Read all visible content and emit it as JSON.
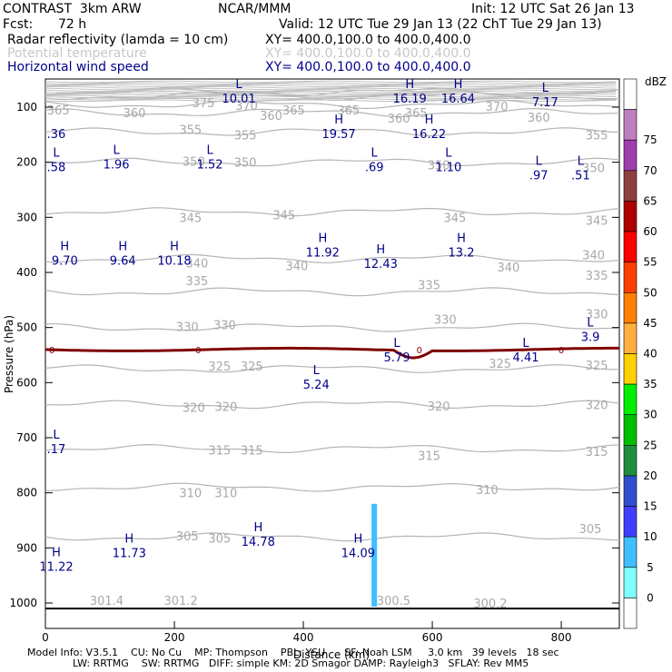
{
  "header": {
    "model": "CONTRAST  3km ARW",
    "center": "NCAR/MMM",
    "init": "Init: 12 UTC Sat 26 Jan 13",
    "fcst_label": "Fcst:",
    "fcst_value": "72 h",
    "valid": "Valid: 12 UTC Tue 29 Jan 13 (22 ChT Tue 29 Jan 13)",
    "fields": [
      {
        "name": "Radar reflectivity (lamda = 10 cm)",
        "xy": "XY= 400.0,100.0 to 400.0,400.0",
        "color": "#000000"
      },
      {
        "name": "Potential temperature",
        "xy": "XY= 400.0,100.0 to 400.0,400.0",
        "color": "#c8c8c8"
      },
      {
        "name": "Horizontal wind speed",
        "xy": "XY= 400.0,100.0 to 400.0,400.0",
        "color": "#00008b"
      }
    ]
  },
  "footer": {
    "line1": "Model Info: V3.5.1    CU: No Cu    MP: Thompson    PBL: YSU      SF: Noah LSM     3.0 km   39 levels   18 sec",
    "line2": "LW: RRTMG    SW: RRTMG   DIFF: simple KM: 2D Smagor DAMP: Rayleigh3   SFLAY: Rev MM5"
  },
  "chart_data": {
    "type": "cross-section",
    "xlabel": "Distance (km)",
    "ylabel": "Pressure (hPa)",
    "xlim": [
      0,
      890
    ],
    "ylim": [
      1000,
      50
    ],
    "x_ticks": [
      0,
      200,
      400,
      600,
      800
    ],
    "y_ticks": [
      100,
      200,
      300,
      400,
      500,
      600,
      700,
      800,
      900,
      1000
    ],
    "theta_contours": [
      {
        "value": 305,
        "p": 880
      },
      {
        "value": 310,
        "p": 790
      },
      {
        "value": 315,
        "p": 720
      },
      {
        "value": 320,
        "p": 640
      },
      {
        "value": 325,
        "p": 575
      },
      {
        "value": 330,
        "p": 500
      },
      {
        "value": 335,
        "p": 435
      },
      {
        "value": 340,
        "p": 375
      },
      {
        "value": 345,
        "p": 290
      },
      {
        "value": 350,
        "p": 200
      },
      {
        "value": 355,
        "p": 145
      },
      {
        "value": 360,
        "p": 110
      },
      {
        "value": 365,
        "p": 95
      },
      {
        "value": 370,
        "p": 80
      },
      {
        "value": 375,
        "p": 72
      }
    ],
    "theta_labels": [
      {
        "x": 138,
        "p": 110,
        "text": "360"
      },
      {
        "x": 245,
        "p": 92,
        "text": "375"
      },
      {
        "x": 312,
        "p": 97,
        "text": "370"
      },
      {
        "x": 385,
        "p": 105,
        "text": "365"
      },
      {
        "x": 470,
        "p": 105,
        "text": "365"
      },
      {
        "x": 575,
        "p": 110,
        "text": "365"
      },
      {
        "x": 700,
        "p": 98,
        "text": "370"
      },
      {
        "x": 20,
        "p": 105,
        "text": "365"
      },
      {
        "x": 350,
        "p": 115,
        "text": "360"
      },
      {
        "x": 548,
        "p": 120,
        "text": "360"
      },
      {
        "x": 765,
        "p": 118,
        "text": "360"
      },
      {
        "x": 225,
        "p": 140,
        "text": "355"
      },
      {
        "x": 310,
        "p": 150,
        "text": "355"
      },
      {
        "x": 855,
        "p": 150,
        "text": "355"
      },
      {
        "x": 230,
        "p": 198,
        "text": "350"
      },
      {
        "x": 310,
        "p": 200,
        "text": "350"
      },
      {
        "x": 610,
        "p": 205,
        "text": "350"
      },
      {
        "x": 850,
        "p": 210,
        "text": "350"
      },
      {
        "x": 225,
        "p": 300,
        "text": "345"
      },
      {
        "x": 370,
        "p": 295,
        "text": "345"
      },
      {
        "x": 635,
        "p": 300,
        "text": "345"
      },
      {
        "x": 855,
        "p": 305,
        "text": "345"
      },
      {
        "x": 235,
        "p": 383,
        "text": "340"
      },
      {
        "x": 390,
        "p": 388,
        "text": "340"
      },
      {
        "x": 718,
        "p": 390,
        "text": "340"
      },
      {
        "x": 850,
        "p": 368,
        "text": "340"
      },
      {
        "x": 235,
        "p": 415,
        "text": "335"
      },
      {
        "x": 595,
        "p": 422,
        "text": "335"
      },
      {
        "x": 855,
        "p": 405,
        "text": "335"
      },
      {
        "x": 220,
        "p": 498,
        "text": "330"
      },
      {
        "x": 278,
        "p": 495,
        "text": "330"
      },
      {
        "x": 620,
        "p": 485,
        "text": "330"
      },
      {
        "x": 855,
        "p": 475,
        "text": "330"
      },
      {
        "x": 270,
        "p": 570,
        "text": "325"
      },
      {
        "x": 320,
        "p": 570,
        "text": "325"
      },
      {
        "x": 705,
        "p": 565,
        "text": "325"
      },
      {
        "x": 855,
        "p": 568,
        "text": "325"
      },
      {
        "x": 230,
        "p": 645,
        "text": "320"
      },
      {
        "x": 280,
        "p": 643,
        "text": "320"
      },
      {
        "x": 610,
        "p": 642,
        "text": "320"
      },
      {
        "x": 855,
        "p": 640,
        "text": "320"
      },
      {
        "x": 270,
        "p": 722,
        "text": "315"
      },
      {
        "x": 320,
        "p": 722,
        "text": "315"
      },
      {
        "x": 595,
        "p": 732,
        "text": "315"
      },
      {
        "x": 855,
        "p": 725,
        "text": "315"
      },
      {
        "x": 225,
        "p": 800,
        "text": "310"
      },
      {
        "x": 280,
        "p": 800,
        "text": "310"
      },
      {
        "x": 685,
        "p": 794,
        "text": "310"
      },
      {
        "x": 220,
        "p": 878,
        "text": "305"
      },
      {
        "x": 270,
        "p": 882,
        "text": "305"
      },
      {
        "x": 845,
        "p": 865,
        "text": "305"
      },
      {
        "x": 95,
        "p": 995,
        "text": "301.4"
      },
      {
        "x": 210,
        "p": 995,
        "text": "301.2"
      },
      {
        "x": 540,
        "p": 995,
        "text": "300.5"
      },
      {
        "x": 690,
        "p": 1000,
        "text": "300.2"
      }
    ],
    "wind_extrema": [
      {
        "x": 300,
        "p": 65,
        "type": "L",
        "value": "10.01"
      },
      {
        "x": 565,
        "p": 65,
        "type": "H",
        "value": "16.19"
      },
      {
        "x": 640,
        "p": 65,
        "type": "H",
        "value": "16.64"
      },
      {
        "x": 775,
        "p": 72,
        "type": "L",
        "value": "7.17"
      },
      {
        "x": 0,
        "p": 130,
        "type": "",
        "value": ".36"
      },
      {
        "x": 455,
        "p": 130,
        "type": "H",
        "value": "19.57"
      },
      {
        "x": 595,
        "p": 130,
        "type": "H",
        "value": "16.22"
      },
      {
        "x": 0,
        "p": 190,
        "type": "L",
        "value": ".58"
      },
      {
        "x": 110,
        "p": 185,
        "type": "L",
        "value": "1.96"
      },
      {
        "x": 255,
        "p": 185,
        "type": "L",
        "value": "1.52"
      },
      {
        "x": 510,
        "p": 190,
        "type": "L",
        "value": ".69"
      },
      {
        "x": 625,
        "p": 190,
        "type": "L",
        "value": "1.10"
      },
      {
        "x": 765,
        "p": 205,
        "type": "L",
        "value": ".97"
      },
      {
        "x": 830,
        "p": 205,
        "type": "L",
        "value": ".51"
      },
      {
        "x": 30,
        "p": 360,
        "type": "H",
        "value": "9.70"
      },
      {
        "x": 120,
        "p": 360,
        "type": "H",
        "value": "9.64"
      },
      {
        "x": 200,
        "p": 360,
        "type": "H",
        "value": "10.18"
      },
      {
        "x": 430,
        "p": 345,
        "type": "H",
        "value": "11.92"
      },
      {
        "x": 520,
        "p": 365,
        "type": "H",
        "value": "12.43"
      },
      {
        "x": 645,
        "p": 345,
        "type": "H",
        "value": "13.2"
      },
      {
        "x": 845,
        "p": 498,
        "type": "L",
        "value": "3.9"
      },
      {
        "x": 545,
        "p": 535,
        "type": "L",
        "value": "5.79"
      },
      {
        "x": 745,
        "p": 535,
        "type": "L",
        "value": "4.41"
      },
      {
        "x": 420,
        "p": 585,
        "type": "L",
        "value": "5.24"
      },
      {
        "x": 15,
        "p": 702,
        "type": "L",
        "value": ".17"
      },
      {
        "x": 330,
        "p": 870,
        "type": "H",
        "value": "14.78"
      },
      {
        "x": 485,
        "p": 890,
        "type": "H",
        "value": "14.09"
      },
      {
        "x": 0,
        "p": 915,
        "type": "H",
        "value": "11.22"
      },
      {
        "x": 130,
        "p": 890,
        "type": "H",
        "value": "11.73"
      }
    ],
    "trop_line": {
      "name": "0",
      "p": 540,
      "color": "#7f0000"
    },
    "reflectivity_columns": [
      {
        "x": 510,
        "p_top": 820,
        "p_bottom": 1000,
        "dbz": 12
      }
    ],
    "colorbar": {
      "label": "dBZ",
      "levels": [
        "0",
        "5",
        "10",
        "15",
        "20",
        "25",
        "30",
        "35",
        "40",
        "45",
        "50",
        "55",
        "60",
        "65",
        "70",
        "75"
      ],
      "colors": [
        "#ffffff",
        "#7fffff",
        "#3fbfff",
        "#3f3fff",
        "#2f4fcf",
        "#1f8f3f",
        "#00bf00",
        "#00ef00",
        "#ffcf00",
        "#ffaf3f",
        "#ff7f00",
        "#ff3f00",
        "#ff0000",
        "#af0000",
        "#8f3f3f",
        "#9f3faf",
        "#bf7fbf",
        "#ffffff"
      ]
    }
  }
}
